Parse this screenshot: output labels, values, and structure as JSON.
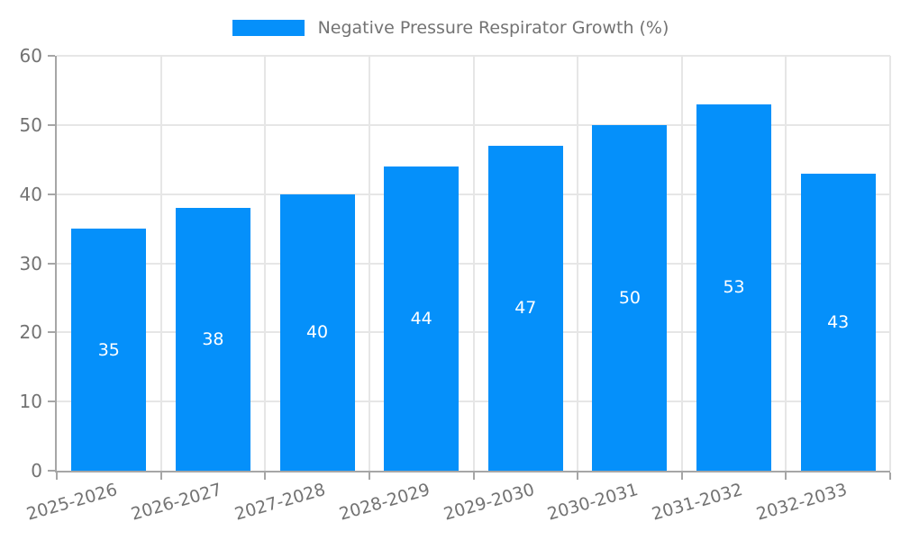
{
  "chart_data": {
    "type": "bar",
    "title": "",
    "legend_label": "Negative Pressure Respirator Growth (%)",
    "legend_position": "top-center",
    "categories": [
      "2025-2026",
      "2026-2027",
      "2027-2028",
      "2028-2029",
      "2029-2030",
      "2030-2031",
      "2031-2032",
      "2032-2033"
    ],
    "values": [
      35,
      38,
      40,
      44,
      47,
      50,
      53,
      43
    ],
    "value_labels_inside_bars": true,
    "xlabel": "",
    "ylabel": "",
    "ylim": [
      0,
      60
    ],
    "yticks": [
      0,
      10,
      20,
      30,
      40,
      50,
      60
    ],
    "grid": true,
    "colors": {
      "bar": "#0590FA",
      "grid": "#e6e6e6",
      "axis": "#a6a6a6",
      "tick_text": "#737373",
      "legend_text": "#737373",
      "value_label_text": "#ffffff",
      "background": "#ffffff"
    }
  }
}
